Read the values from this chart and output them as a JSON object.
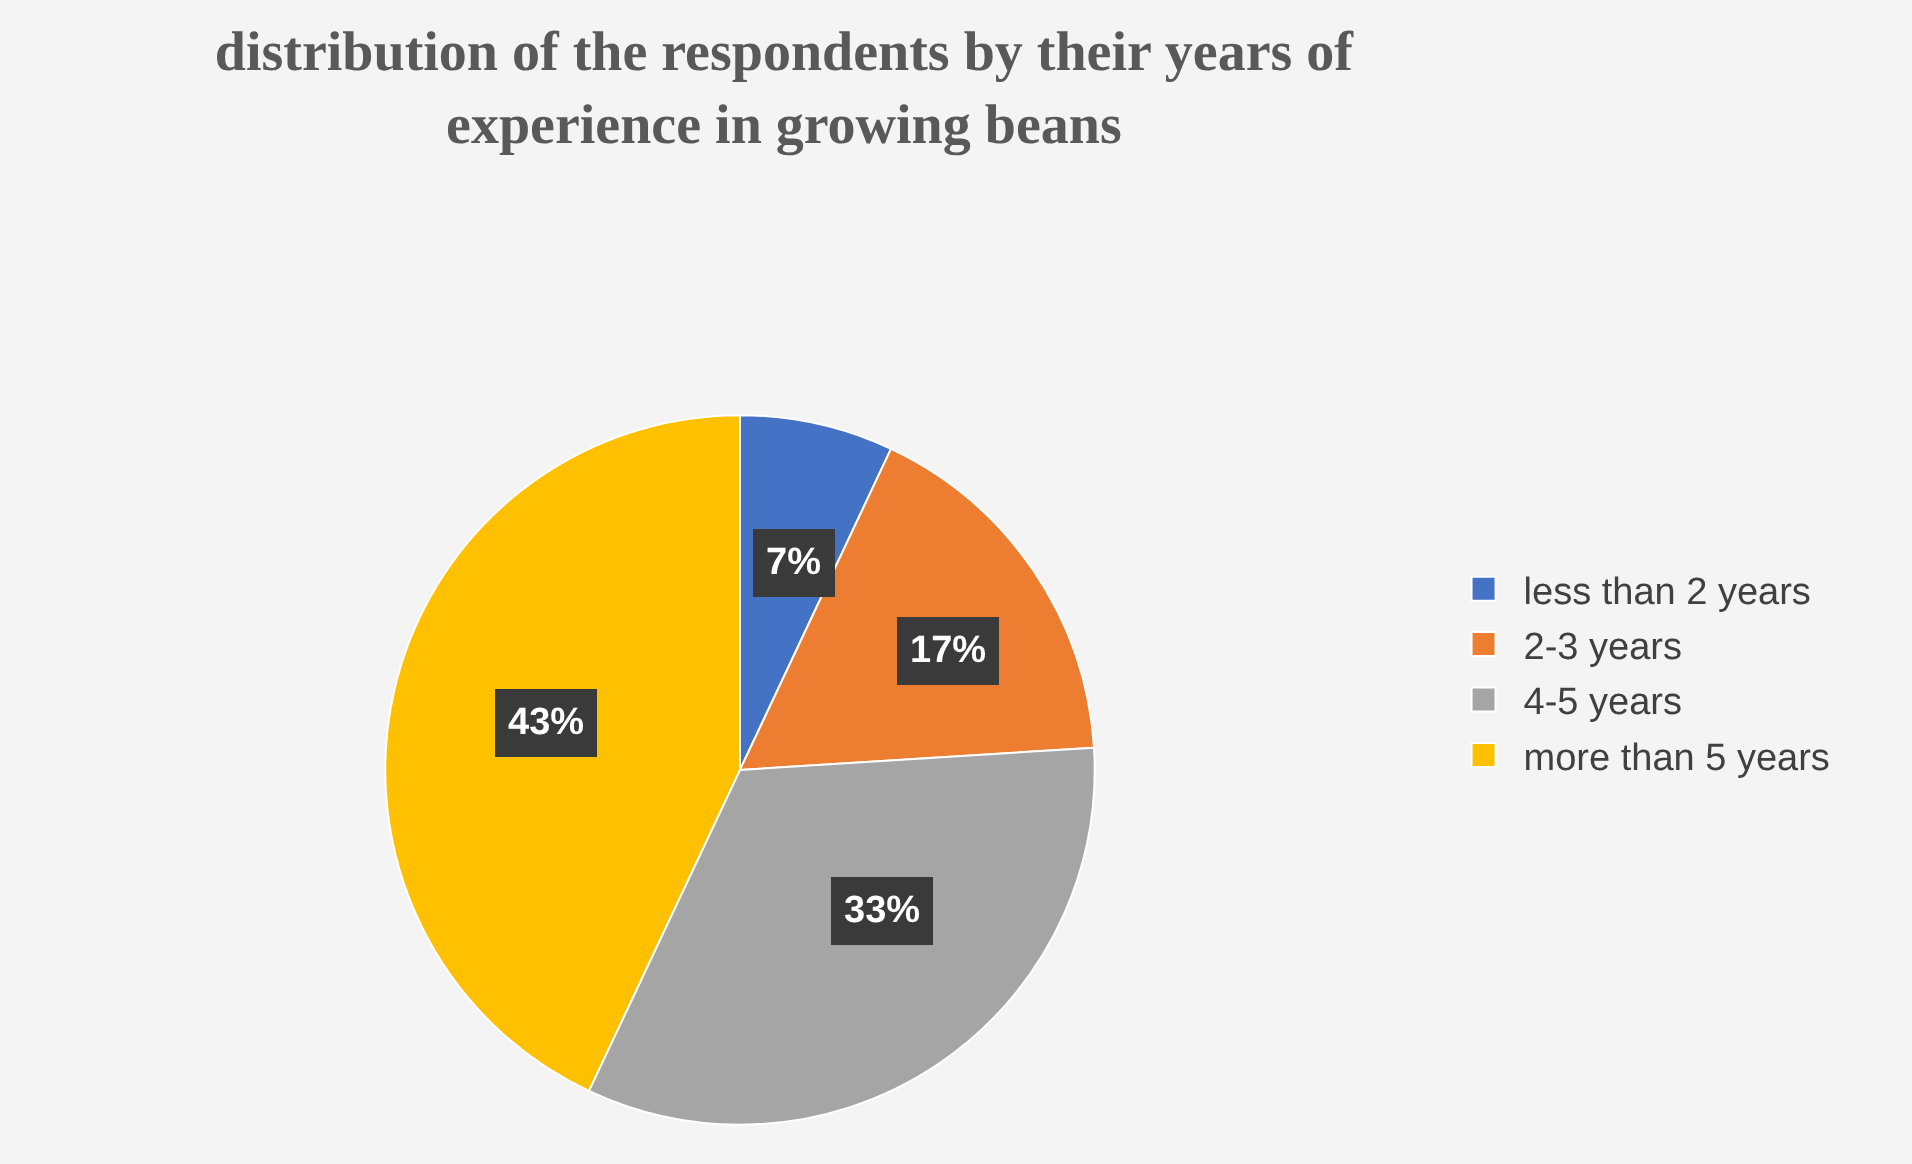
{
  "chart_data": {
    "type": "pie",
    "title": "distribution of the respondents by their years of\nexperience in growing beans",
    "categories": [
      "less than 2 years",
      "2-3 years",
      "4-5 years",
      "more than 5 years"
    ],
    "values": [
      7,
      17,
      33,
      43
    ],
    "colors": [
      "#4472c4",
      "#ed7d31",
      "#a5a5a5",
      "#ffc000"
    ],
    "value_labels": [
      "7%",
      "17%",
      "33%",
      "43%"
    ],
    "legend": "right"
  }
}
